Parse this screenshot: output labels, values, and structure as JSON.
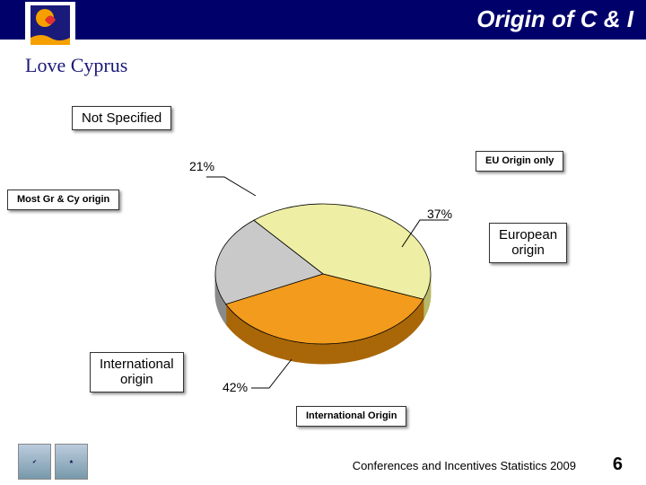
{
  "header": {
    "title": "Origin of C & I"
  },
  "logo": {
    "text": "Love Cyprus"
  },
  "chart": {
    "type": "pie-3d",
    "slices": [
      {
        "key": "international",
        "value": 42,
        "color_top": "#eeeea4",
        "color_side": "#b8b868"
      },
      {
        "key": "european",
        "value": 37,
        "color_top": "#f29b1d",
        "color_side": "#a96708"
      },
      {
        "key": "not_specified",
        "value": 21,
        "color_top": "#c9c9c9",
        "color_side": "#8a8a8a"
      }
    ],
    "start_angle": 230,
    "depth": 22,
    "background": "#ffffff",
    "outline": "#000000"
  },
  "labels": {
    "not_specified": {
      "box": "Not Specified",
      "pct": "21%"
    },
    "eu_only": {
      "box": "EU Origin only",
      "pct": "37%"
    },
    "most_gr_cy": {
      "box": "Most Gr & Cy origin"
    },
    "european": {
      "box": "European\norigin"
    },
    "international": {
      "box": "International\norigin",
      "pct": "42%"
    },
    "intl_origin_sub": {
      "box": "International Origin"
    }
  },
  "footer": {
    "text": "Conferences and Incentives Statistics 2009",
    "page": "6"
  }
}
